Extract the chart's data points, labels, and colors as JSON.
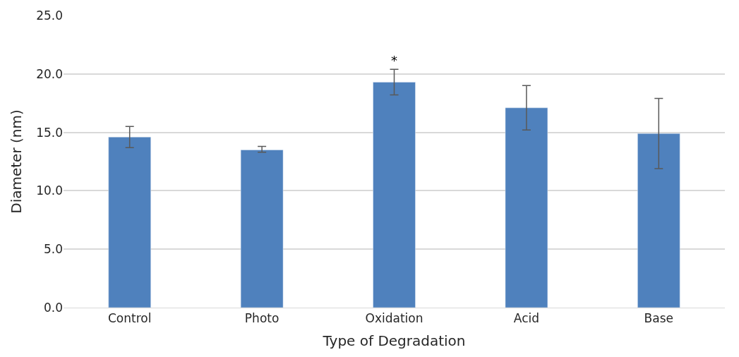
{
  "chart_data": {
    "type": "bar",
    "xlabel": "Type of Degradation",
    "ylabel": "Diameter (nm)",
    "categories": [
      "Control",
      "Photo",
      "Oxidation",
      "Acid",
      "Base"
    ],
    "values": [
      14.6,
      13.5,
      19.3,
      17.1,
      14.9
    ],
    "errors": [
      [
        13.7,
        15.5
      ],
      [
        13.3,
        13.8
      ],
      [
        18.2,
        20.4
      ],
      [
        15.2,
        19.0
      ],
      [
        11.9,
        17.9
      ]
    ],
    "color": "#4f81bd",
    "ylim": [
      0,
      25
    ],
    "yticks": [
      {
        "value": 0,
        "label": "0.0"
      },
      {
        "value": 5,
        "label": "5.0"
      },
      {
        "value": 10,
        "label": "10.0"
      },
      {
        "value": 15,
        "label": "15.0"
      },
      {
        "value": 20,
        "label": "20.0"
      },
      {
        "value": 25,
        "label": "25.0"
      }
    ],
    "grid": "y",
    "annotations": [
      {
        "text": "*",
        "x": "Oxidation",
        "y": 20.4
      }
    ]
  }
}
